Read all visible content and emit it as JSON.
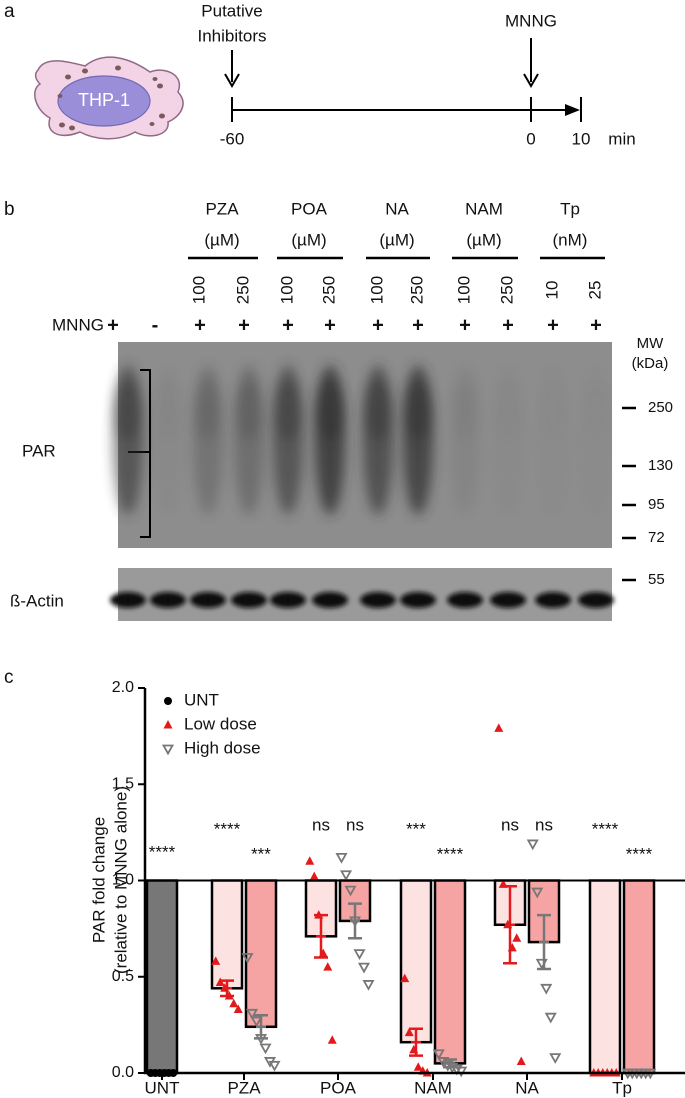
{
  "panel_a": {
    "label": "a",
    "cell_label": "THP-1",
    "inhibitor_label": [
      "Putative",
      "Inhibitors"
    ],
    "treatment_label": "MNNG",
    "time_labels": [
      "-60",
      "0",
      "10"
    ],
    "time_unit": "min"
  },
  "panel_b": {
    "label": "b",
    "groups": [
      {
        "name": "PZA",
        "unit": "(µM)",
        "doses": [
          100,
          250
        ]
      },
      {
        "name": "POA",
        "unit": "(µM)",
        "doses": [
          100,
          250
        ]
      },
      {
        "name": "NA",
        "unit": "(µM)",
        "doses": [
          100,
          250
        ]
      },
      {
        "name": "NAM",
        "unit": "(µM)",
        "doses": [
          100,
          250
        ]
      },
      {
        "name": "Tp",
        "unit": "(nM)",
        "doses": [
          10,
          25
        ]
      }
    ],
    "treatment_label": "MNNG",
    "treatment_signs": [
      "+",
      "-",
      "+",
      "+",
      "+",
      "+",
      "+",
      "+",
      "+",
      "+",
      "+",
      "+"
    ],
    "mw_title": [
      "MW",
      "(kDa)"
    ],
    "mw_markers": [
      250,
      130,
      95,
      72,
      55
    ],
    "par_label": "PAR",
    "actin_label": "ß-Actin"
  },
  "chart_data": {
    "type": "bar",
    "label": "c",
    "ylabel": [
      "PAR fold change",
      "(relative to MNNG alone)"
    ],
    "categories": [
      "UNT",
      "PZA",
      "POA",
      "NAM",
      "NA",
      "Tp"
    ],
    "ylim": [
      0,
      2
    ],
    "yticks": [
      {
        "value": 0,
        "label": "0.0"
      },
      {
        "value": 0.5,
        "label": "0.5"
      },
      {
        "value": 1,
        "label": "1.0"
      },
      {
        "value": 1.5,
        "label": "1.5"
      },
      {
        "value": 2,
        "label": "2.0"
      }
    ],
    "bar_baseline": 1,
    "legend": "top-left",
    "series": [
      {
        "name": "UNT",
        "marker": "circle",
        "color": "#000000",
        "bar_color": "#777777",
        "values": [
          0,
          null,
          null,
          null,
          null,
          null
        ],
        "errors": [
          null,
          null,
          null,
          null,
          null,
          null
        ],
        "points": [
          [
            0,
            0,
            0,
            0,
            0,
            0
          ],
          [],
          [],
          [],
          [],
          []
        ],
        "significance": [
          "****",
          null,
          null,
          null,
          null,
          null
        ]
      },
      {
        "name": "Low dose",
        "marker": "triangle",
        "color": "#e31a1c",
        "bar_color": "#fde2e2",
        "values": [
          null,
          0.44,
          0.71,
          0.16,
          0.77,
          0
        ],
        "errors": [
          null,
          0.04,
          0.11,
          0.07,
          0.2,
          null
        ],
        "points": [
          [],
          [
            0.58,
            0.47,
            0.44,
            0.4,
            0.36,
            0.33
          ],
          [
            1.1,
            1.02,
            0.82,
            0.62,
            0.55,
            0.17
          ],
          [
            0.49,
            0.21,
            0.12,
            0.03,
            0.01,
            0
          ],
          [
            1.79,
            0.98,
            0.77,
            0.65,
            0.7,
            0.06
          ],
          [
            0,
            0,
            0,
            0,
            0,
            0
          ]
        ],
        "significance": [
          null,
          "****",
          "ns",
          "***",
          "ns",
          "****"
        ]
      },
      {
        "name": "High dose",
        "marker": "triangle-down-open",
        "color": "#777777",
        "bar_color": "#f6a3a3",
        "values": [
          null,
          0.24,
          0.79,
          0.05,
          0.68,
          0
        ],
        "errors": [
          null,
          0.06,
          0.09,
          0.02,
          0.14,
          null
        ],
        "points": [
          [],
          [
            0.6,
            0.31,
            0.27,
            0.18,
            0.13,
            0.06,
            0.04
          ],
          [
            1.12,
            1.03,
            0.95,
            0.79,
            0.62,
            0.55,
            0.46
          ],
          [
            0.1,
            0.06,
            0.04,
            0.03,
            0.02,
            0.01
          ],
          [
            1.19,
            0.94,
            0.57,
            0.44,
            0.29,
            0.08
          ],
          [
            0,
            0,
            0,
            0,
            0,
            0
          ]
        ],
        "significance": [
          null,
          "***",
          "ns",
          "****",
          "ns",
          "****"
        ]
      }
    ]
  }
}
